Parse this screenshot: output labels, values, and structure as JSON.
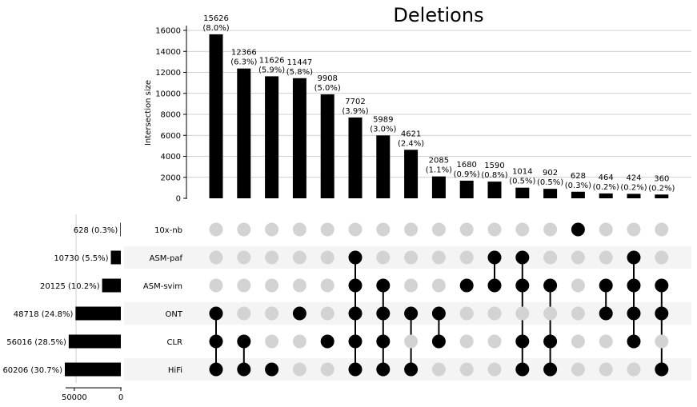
{
  "chart_data": {
    "type": "bar",
    "title": "Deletions",
    "ylabel": "Intersection size",
    "ylim": [
      0,
      16000
    ],
    "yticks": [
      0,
      2000,
      4000,
      6000,
      8000,
      10000,
      12000,
      14000,
      16000
    ],
    "grid": true,
    "intersections": [
      {
        "value": 15626,
        "label": "15626",
        "pct": "(8.0%)",
        "members": [
          "ONT",
          "CLR",
          "HiFi"
        ]
      },
      {
        "value": 12366,
        "label": "12366",
        "pct": "(6.3%)",
        "members": [
          "CLR",
          "HiFi"
        ]
      },
      {
        "value": 11626,
        "label": "11626",
        "pct": "(5.9%)",
        "members": [
          "HiFi"
        ]
      },
      {
        "value": 11447,
        "label": "11447",
        "pct": "(5.8%)",
        "members": [
          "ONT"
        ]
      },
      {
        "value": 9908,
        "label": "9908",
        "pct": "(5.0%)",
        "members": [
          "CLR"
        ]
      },
      {
        "value": 7702,
        "label": "7702",
        "pct": "(3.9%)",
        "members": [
          "ASM-paf",
          "ASM-svim",
          "ONT",
          "CLR",
          "HiFi"
        ]
      },
      {
        "value": 5989,
        "label": "5989",
        "pct": "(3.0%)",
        "members": [
          "ASM-svim",
          "ONT",
          "CLR",
          "HiFi"
        ]
      },
      {
        "value": 4621,
        "label": "4621",
        "pct": "(2.4%)",
        "members": [
          "ONT",
          "HiFi"
        ]
      },
      {
        "value": 2085,
        "label": "2085",
        "pct": "(1.1%)",
        "members": [
          "ONT",
          "CLR"
        ]
      },
      {
        "value": 1680,
        "label": "1680",
        "pct": "(0.9%)",
        "members": [
          "ASM-svim"
        ]
      },
      {
        "value": 1590,
        "label": "1590",
        "pct": "(0.8%)",
        "members": [
          "ASM-paf",
          "ASM-svim"
        ]
      },
      {
        "value": 1014,
        "label": "1014",
        "pct": "(0.5%)",
        "members": [
          "ASM-paf",
          "ASM-svim",
          "CLR",
          "HiFi"
        ]
      },
      {
        "value": 902,
        "label": "902",
        "pct": "(0.5%)",
        "members": [
          "ASM-svim",
          "CLR",
          "HiFi"
        ]
      },
      {
        "value": 628,
        "label": "628",
        "pct": "(0.3%)",
        "members": [
          "10x-nb"
        ]
      },
      {
        "value": 464,
        "label": "464",
        "pct": "(0.2%)",
        "members": [
          "ASM-svim",
          "ONT"
        ]
      },
      {
        "value": 424,
        "label": "424",
        "pct": "(0.2%)",
        "members": [
          "ASM-paf",
          "ASM-svim",
          "ONT",
          "CLR"
        ]
      },
      {
        "value": 360,
        "label": "360",
        "pct": "(0.2%)",
        "members": [
          "ASM-svim",
          "ONT",
          "HiFi"
        ]
      }
    ],
    "sets": [
      {
        "name": "10x-nb",
        "size": 628,
        "label": "628 (0.3%)"
      },
      {
        "name": "ASM-paf",
        "size": 10730,
        "label": "10730 (5.5%)"
      },
      {
        "name": "ASM-svim",
        "size": 20125,
        "label": "20125 (10.2%)"
      },
      {
        "name": "ONT",
        "size": 48718,
        "label": "48718 (24.8%)"
      },
      {
        "name": "CLR",
        "size": 56016,
        "label": "56016 (28.5%)"
      },
      {
        "name": "HiFi",
        "size": 60206,
        "label": "60206 (30.7%)"
      }
    ],
    "set_size_xticks": [
      50000,
      0
    ],
    "set_size_xlim": [
      0,
      60206
    ],
    "colors": {
      "bar": "#000000",
      "dot_on": "#000000",
      "dot_off": "#d3d3d3",
      "stripe": "#f4f4f4",
      "grid": "#c0c0c0"
    }
  }
}
